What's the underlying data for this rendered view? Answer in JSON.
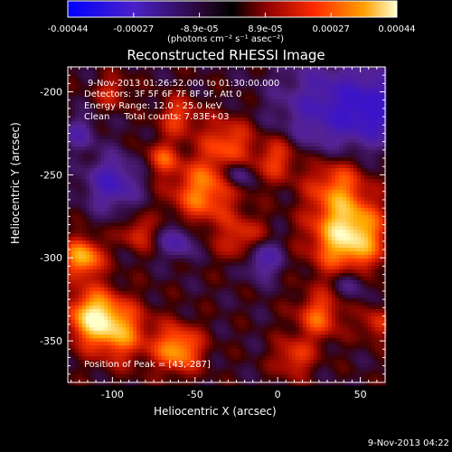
{
  "chart_data": {
    "type": "heatmap",
    "title": "Reconstructed RHESSI Image",
    "xlabel": "Heliocentric X (arcsec)",
    "ylabel": "Heliocentric Y (arcsec)",
    "xlim": [
      -127,
      65
    ],
    "ylim": [
      -375,
      -185
    ],
    "x_ticks": [
      -100,
      -50,
      0,
      50
    ],
    "y_ticks": [
      -200,
      -250,
      -300,
      -350
    ],
    "colorbar": {
      "tick_labels": [
        "-0.00044",
        "-0.00027",
        "-8.9e-05",
        "8.9e-05",
        "0.00027",
        "0.00044"
      ],
      "range": [
        -0.00044,
        0.00044
      ],
      "unit": "(photons cm⁻² s⁻¹ asec⁻²)",
      "colors": [
        "#0000ff",
        "#5a2ab4",
        "#3a0a4a",
        "#000000",
        "#8b0000",
        "#ff2000",
        "#ffa000",
        "#ffffa0"
      ]
    },
    "peak": [
      43,
      -287
    ],
    "annotations": [
      "9-Nov-2013 01:26:52.000 to 01:30:00.000",
      "Detectors: 3F 5F 6F 7F 8F 9F, Att 0",
      "Energy Range: 12.0 - 25.0 keV",
      "Clean     Total counts: 7.83E+03",
      "Position of Peak = [43,-287]"
    ]
  },
  "footer": "9-Nov-2013 04:22"
}
